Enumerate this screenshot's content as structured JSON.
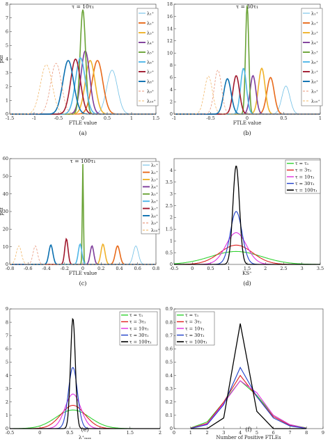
{
  "chart_data": [
    {
      "id": "a",
      "type": "line",
      "title": "τ = 10τ₁",
      "caption": "(a)",
      "xlabel": "FTLE value",
      "ylabel": "pdf",
      "xlim": [
        -1.5,
        1.5
      ],
      "ylim": [
        0,
        8
      ],
      "xticks": [
        "-1.5",
        "-1",
        "-0.5",
        "0",
        "0.5",
        "1",
        "1.5"
      ],
      "yticks": [
        "0",
        "1",
        "2",
        "3",
        "4",
        "5",
        "6",
        "7",
        "8"
      ],
      "legend": "right",
      "series": [
        {
          "name": "λ₁⁺",
          "color": "#6fbfe6",
          "dash": "",
          "width": 0.8,
          "center": 0.6,
          "peak": 3.2,
          "sigma": 0.11
        },
        {
          "name": "λ₂⁺",
          "color": "#e86a1a",
          "dash": "",
          "width": 1.6,
          "center": 0.3,
          "peak": 3.9,
          "sigma": 0.11
        },
        {
          "name": "λ₃⁺",
          "color": "#f0b22a",
          "dash": "",
          "width": 1.6,
          "center": 0.15,
          "peak": 3.9,
          "sigma": 0.1
        },
        {
          "name": "λ₄⁺",
          "color": "#7e3c9a",
          "dash": "",
          "width": 1.6,
          "center": 0.05,
          "peak": 4.6,
          "sigma": 0.09
        },
        {
          "name": "λ₅⁺",
          "color": "#6aa336",
          "dash": "",
          "width": 1.6,
          "center": 0.0,
          "peak": 7.6,
          "sigma": 0.055
        },
        {
          "name": "λ₆⁺",
          "color": "#4fb6e8",
          "dash": "",
          "width": 1.6,
          "center": -0.05,
          "peak": 4.1,
          "sigma": 0.1
        },
        {
          "name": "λ₇⁺",
          "color": "#a0182d",
          "dash": "",
          "width": 1.6,
          "center": -0.15,
          "peak": 4.0,
          "sigma": 0.1
        },
        {
          "name": "λ₈⁺",
          "color": "#0a6fb0",
          "dash": "",
          "width": 1.6,
          "center": -0.3,
          "peak": 3.9,
          "sigma": 0.11
        },
        {
          "name": "λ₉⁺",
          "color": "#e9967a",
          "dash": "3,2",
          "width": 0.8,
          "center": -0.55,
          "peak": 3.7,
          "sigma": 0.11
        },
        {
          "name": "λ₁₀⁺",
          "color": "#f2b86a",
          "dash": "3,2",
          "width": 0.8,
          "center": -0.75,
          "peak": 3.6,
          "sigma": 0.12
        }
      ]
    },
    {
      "id": "b",
      "type": "line",
      "title": "τ = 30τ₁",
      "caption": "(b)",
      "xlabel": "FTLE value",
      "ylabel": "",
      "xlim": [
        -1,
        1
      ],
      "ylim": [
        0,
        18
      ],
      "xticks": [
        "-1",
        "-0.5",
        "0",
        "0.5",
        "1"
      ],
      "yticks": [
        "0",
        "2",
        "4",
        "6",
        "8",
        "10",
        "12",
        "14",
        "16",
        "18"
      ],
      "legend": "right",
      "series": [
        {
          "name": "λ₁⁺",
          "color": "#6fbfe6",
          "dash": "",
          "width": 0.8,
          "center": 0.53,
          "peak": 4.6,
          "sigma": 0.055
        },
        {
          "name": "λ₂⁺",
          "color": "#e86a1a",
          "dash": "",
          "width": 1.6,
          "center": 0.32,
          "peak": 6.0,
          "sigma": 0.05
        },
        {
          "name": "λ₃⁺",
          "color": "#f0b22a",
          "dash": "",
          "width": 1.6,
          "center": 0.2,
          "peak": 7.5,
          "sigma": 0.045
        },
        {
          "name": "λ₄⁺",
          "color": "#7e3c9a",
          "dash": "",
          "width": 1.6,
          "center": 0.08,
          "peak": 6.3,
          "sigma": 0.04
        },
        {
          "name": "λ₅⁺",
          "color": "#6aa336",
          "dash": "",
          "width": 1.6,
          "center": 0.0,
          "peak": 17.8,
          "sigma": 0.022
        },
        {
          "name": "λ₆⁺",
          "color": "#4fb6e8",
          "dash": "",
          "width": 1.6,
          "center": -0.05,
          "peak": 7.5,
          "sigma": 0.04
        },
        {
          "name": "λ₇⁺",
          "color": "#a0182d",
          "dash": "",
          "width": 1.6,
          "center": -0.15,
          "peak": 6.3,
          "sigma": 0.045
        },
        {
          "name": "λ₈⁺",
          "color": "#0a6fb0",
          "dash": "",
          "width": 1.6,
          "center": -0.27,
          "peak": 5.8,
          "sigma": 0.05
        },
        {
          "name": "λ₉⁺",
          "color": "#e9967a",
          "dash": "3,2",
          "width": 0.8,
          "center": -0.4,
          "peak": 7.2,
          "sigma": 0.05
        },
        {
          "name": "λ₁₀⁺",
          "color": "#f2b86a",
          "dash": "3,2",
          "width": 0.8,
          "center": -0.53,
          "peak": 6.2,
          "sigma": 0.055
        }
      ]
    },
    {
      "id": "c",
      "type": "line",
      "title": "τ = 100τ₁",
      "caption": "(c)",
      "xlabel": "FTLE value",
      "ylabel": "pdf",
      "xlim": [
        -0.8,
        0.8
      ],
      "ylim": [
        0,
        60
      ],
      "xticks": [
        "-0.8",
        "-0.6",
        "-0.4",
        "-0.2",
        "0",
        "0.2",
        "0.4",
        "0.6",
        "0.8"
      ],
      "yticks": [
        "0",
        "10",
        "20",
        "30",
        "40",
        "50",
        "60"
      ],
      "legend": "right",
      "series": [
        {
          "name": "λ₁⁺",
          "color": "#6fbfe6",
          "dash": "",
          "width": 0.8,
          "center": 0.58,
          "peak": 10.5,
          "sigma": 0.028
        },
        {
          "name": "λ₂⁺",
          "color": "#e86a1a",
          "dash": "",
          "width": 1.6,
          "center": 0.38,
          "peak": 10.5,
          "sigma": 0.025
        },
        {
          "name": "λ₃⁺",
          "color": "#f0b22a",
          "dash": "",
          "width": 1.6,
          "center": 0.22,
          "peak": 11.5,
          "sigma": 0.022
        },
        {
          "name": "λ₄⁺",
          "color": "#7e3c9a",
          "dash": "",
          "width": 1.6,
          "center": 0.1,
          "peak": 10.5,
          "sigma": 0.02
        },
        {
          "name": "λ₅⁺",
          "color": "#6aa336",
          "dash": "",
          "width": 1.6,
          "center": 0.0,
          "peak": 57.0,
          "sigma": 0.006
        },
        {
          "name": "λ₆⁺",
          "color": "#4fb6e8",
          "dash": "",
          "width": 1.6,
          "center": -0.03,
          "peak": 11.5,
          "sigma": 0.02
        },
        {
          "name": "λ₇⁺",
          "color": "#a0182d",
          "dash": "",
          "width": 1.6,
          "center": -0.18,
          "peak": 14.5,
          "sigma": 0.018
        },
        {
          "name": "λ₈⁺",
          "color": "#0a6fb0",
          "dash": "",
          "width": 1.6,
          "center": -0.35,
          "peak": 11.0,
          "sigma": 0.022
        },
        {
          "name": "λ₉⁺",
          "color": "#e9967a",
          "dash": "3,2",
          "width": 0.8,
          "center": -0.52,
          "peak": 10.5,
          "sigma": 0.025
        },
        {
          "name": "λ₁₀⁺",
          "color": "#f2b86a",
          "dash": "3,2",
          "width": 0.8,
          "center": -0.7,
          "peak": 10.5,
          "sigma": 0.028
        }
      ]
    },
    {
      "id": "d",
      "type": "line",
      "title": "",
      "caption": "(d)",
      "xlabel": "KS⁺",
      "ylabel": "",
      "xlim": [
        -0.5,
        3.5
      ],
      "ylim": [
        0,
        4.5
      ],
      "xticks": [
        "-0.5",
        "0",
        "0.5",
        "1",
        "1.5",
        "2",
        "2.5",
        "3",
        "3.5"
      ],
      "yticks": [
        "0",
        "0.5",
        "1",
        "1.5",
        "2",
        "2.5",
        "3",
        "3.5",
        "4"
      ],
      "legend": "top-right",
      "series": [
        {
          "name": "τ = τ₁",
          "color": "#2fd12f",
          "dash": "",
          "width": 1.1,
          "center": 1.2,
          "peak": 0.55,
          "sigma": 0.7
        },
        {
          "name": "τ = 3τ₁",
          "color": "#e02020",
          "dash": "",
          "width": 1.1,
          "center": 1.2,
          "peak": 0.82,
          "sigma": 0.45
        },
        {
          "name": "τ = 10τ₁",
          "color": "#e030e0",
          "dash": "",
          "width": 1.1,
          "center": 1.2,
          "peak": 1.35,
          "sigma": 0.28
        },
        {
          "name": "τ = 30τ₁",
          "color": "#1f3fc8",
          "dash": "",
          "width": 1.1,
          "center": 1.2,
          "peak": 2.25,
          "sigma": 0.16
        },
        {
          "name": "τ = 100τ₁",
          "color": "#000000",
          "dash": "",
          "width": 1.3,
          "center": 1.2,
          "peak": 4.2,
          "sigma": 0.09
        }
      ]
    },
    {
      "id": "e",
      "type": "line",
      "title": "",
      "caption": "(e)",
      "xlabel": "λ⁺ₘₐₓ",
      "ylabel": "",
      "xlim": [
        -0.5,
        2
      ],
      "ylim": [
        0,
        9
      ],
      "xticks": [
        "-0.5",
        "0",
        "0.5",
        "1",
        "1.5",
        "2"
      ],
      "yticks": [
        "0",
        "1",
        "2",
        "3",
        "4",
        "5",
        "6",
        "7",
        "8",
        "9"
      ],
      "legend": "top-right",
      "series": [
        {
          "name": "τ = τ₁",
          "color": "#2fd12f",
          "dash": "",
          "width": 1.1,
          "center": 0.55,
          "peak": 1.4,
          "sigma": 0.28
        },
        {
          "name": "τ = 3τ₁",
          "color": "#e02020",
          "dash": "",
          "width": 1.1,
          "center": 0.55,
          "peak": 1.75,
          "sigma": 0.2
        },
        {
          "name": "τ = 10τ₁",
          "color": "#e030e0",
          "dash": "",
          "width": 1.1,
          "center": 0.55,
          "peak": 2.6,
          "sigma": 0.13
        },
        {
          "name": "τ = 30τ₁",
          "color": "#1f3fc8",
          "dash": "",
          "width": 1.1,
          "center": 0.55,
          "peak": 4.6,
          "sigma": 0.075
        },
        {
          "name": "τ = 100τ₁",
          "color": "#000000",
          "dash": "",
          "width": 1.3,
          "center": 0.55,
          "peak": 8.3,
          "sigma": 0.04
        }
      ]
    },
    {
      "id": "f",
      "type": "line",
      "title": "",
      "caption": "(f)",
      "xlabel": "Number of Positive FTLEs",
      "ylabel": "",
      "xlim": [
        0,
        9
      ],
      "ylim": [
        0,
        0.9
      ],
      "xticks": [
        "0",
        "1",
        "2",
        "3",
        "4",
        "5",
        "6",
        "7",
        "8",
        "9"
      ],
      "yticks": [
        "0",
        "0.1",
        "0.2",
        "0.3",
        "0.4",
        "0.5",
        "0.6",
        "0.7",
        "0.8",
        "0.9"
      ],
      "legend": "top-left",
      "x": [
        1,
        2,
        3,
        4,
        5,
        6,
        7,
        8
      ],
      "series": [
        {
          "name": "τ = τ₁",
          "color": "#2fd12f",
          "dash": "",
          "width": 1.1,
          "values": [
            0.005,
            0.05,
            0.2,
            0.36,
            0.25,
            0.1,
            0.03,
            0.005
          ]
        },
        {
          "name": "τ = 3τ₁",
          "color": "#e02020",
          "dash": "",
          "width": 1.1,
          "values": [
            0.003,
            0.04,
            0.2,
            0.4,
            0.24,
            0.09,
            0.025,
            0.003
          ]
        },
        {
          "name": "τ = 10τ₁",
          "color": "#e030e0",
          "dash": "",
          "width": 1.1,
          "values": [
            0.002,
            0.035,
            0.19,
            0.36,
            0.27,
            0.1,
            0.03,
            0.002
          ]
        },
        {
          "name": "τ = 30τ₁",
          "color": "#1f3fc8",
          "dash": "",
          "width": 1.1,
          "values": [
            0.001,
            0.03,
            0.18,
            0.46,
            0.24,
            0.08,
            0.02,
            0.001
          ]
        },
        {
          "name": "τ = 100τ₁",
          "color": "#000000",
          "dash": "",
          "width": 1.3,
          "values": [
            0,
            0.0,
            0.08,
            0.79,
            0.13,
            0.0,
            0,
            0
          ]
        }
      ]
    }
  ]
}
